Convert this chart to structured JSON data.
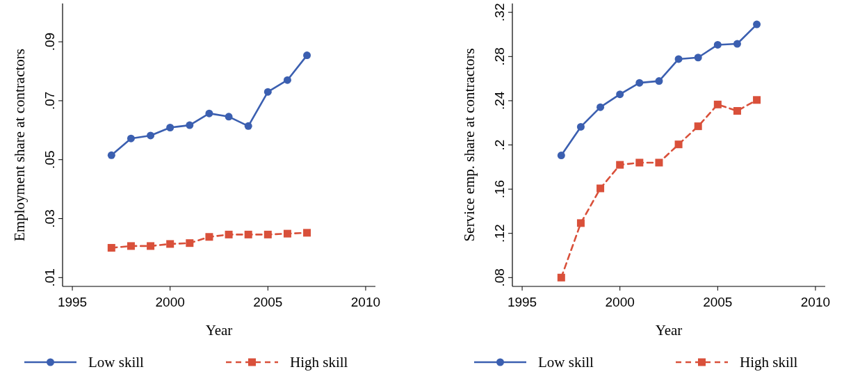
{
  "chart_data": [
    {
      "type": "line",
      "xlabel": "Year",
      "ylabel": "Employment share at contractors",
      "x": [
        1997,
        1998,
        1999,
        2000,
        2001,
        2002,
        2003,
        2004,
        2005,
        2006,
        2007
      ],
      "xlim": [
        1994.5,
        2010.5
      ],
      "xticks": [
        1995,
        2000,
        2005,
        2010
      ],
      "ylim": [
        0.007,
        0.103
      ],
      "yticks": [
        {
          "value": 0.01,
          "label": ".01"
        },
        {
          "value": 0.03,
          "label": ".03"
        },
        {
          "value": 0.05,
          "label": ".05"
        },
        {
          "value": 0.07,
          "label": ".07"
        },
        {
          "value": 0.09,
          "label": ".09"
        }
      ],
      "grid": false,
      "legend": "bottom",
      "series": [
        {
          "name": "Low skill",
          "color": "#3b5fb0",
          "marker": "circle",
          "line_style": "solid",
          "values": [
            0.0515,
            0.0572,
            0.0582,
            0.0609,
            0.0617,
            0.0657,
            0.0646,
            0.0614,
            0.073,
            0.077,
            0.0854
          ]
        },
        {
          "name": "High skill",
          "color": "#d9503a",
          "marker": "square",
          "line_style": "dashed",
          "values": [
            0.0201,
            0.0207,
            0.0207,
            0.0214,
            0.0217,
            0.0238,
            0.0246,
            0.0246,
            0.0246,
            0.0249,
            0.0252
          ]
        }
      ]
    },
    {
      "type": "line",
      "xlabel": "Year",
      "ylabel": "Service emp. share at contractors",
      "x": [
        1997,
        1998,
        1999,
        2000,
        2001,
        2002,
        2003,
        2004,
        2005,
        2006,
        2007
      ],
      "xlim": [
        1994.5,
        2010.5
      ],
      "xticks": [
        1995,
        2000,
        2005,
        2010
      ],
      "ylim": [
        0.072,
        0.328
      ],
      "yticks": [
        {
          "value": 0.08,
          "label": ".08"
        },
        {
          "value": 0.12,
          "label": ".12"
        },
        {
          "value": 0.16,
          "label": ".16"
        },
        {
          "value": 0.2,
          "label": ".2"
        },
        {
          "value": 0.24,
          "label": ".24"
        },
        {
          "value": 0.28,
          "label": ".28"
        },
        {
          "value": 0.32,
          "label": ".32"
        }
      ],
      "grid": false,
      "legend": "bottom",
      "series": [
        {
          "name": "Low skill",
          "color": "#3b5fb0",
          "marker": "circle",
          "line_style": "solid",
          "values": [
            0.1905,
            0.2164,
            0.2342,
            0.2458,
            0.2562,
            0.2578,
            0.2777,
            0.2791,
            0.2906,
            0.2915,
            0.3091
          ]
        },
        {
          "name": "High skill",
          "color": "#d9503a",
          "marker": "square",
          "line_style": "dashed",
          "values": [
            0.08,
            0.1293,
            0.1607,
            0.182,
            0.184,
            0.184,
            0.2005,
            0.2169,
            0.2366,
            0.2308,
            0.2407
          ]
        }
      ]
    }
  ]
}
